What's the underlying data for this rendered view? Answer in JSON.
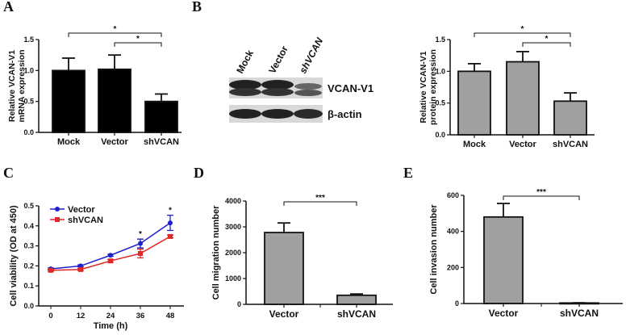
{
  "panels": {
    "A": "A",
    "B": "B",
    "C": "C",
    "D": "D",
    "E": "E"
  },
  "blot": {
    "lanes": [
      "Mock",
      "Vector",
      "shVCAN"
    ],
    "bands": [
      "VCAN-V1",
      "β-actin"
    ]
  },
  "colors": {
    "black_bar": "#000000",
    "gray_bar": "#a0a0a0",
    "vector": "#1f1fcc",
    "shvcan": "#e02828"
  },
  "chart_data": [
    {
      "panel": "A",
      "type": "bar",
      "categories": [
        "Mock",
        "Vector",
        "shVCAN"
      ],
      "values": [
        1.0,
        1.02,
        0.5
      ],
      "errors": [
        0.2,
        0.23,
        0.12
      ],
      "ylabel": [
        "Relative VCAN-V1",
        "mRNA expression"
      ],
      "ylim": [
        0,
        1.5
      ],
      "yticks": [
        "0.0",
        "0.5",
        "1.0",
        "1.5"
      ],
      "ytick_values": [
        0,
        0.5,
        1.0,
        1.5
      ],
      "bar_color": "#000000",
      "significance": [
        {
          "from": "Mock",
          "to": "shVCAN",
          "label": "*"
        },
        {
          "from": "Vector",
          "to": "shVCAN",
          "label": "*"
        }
      ]
    },
    {
      "panel": "B",
      "type": "bar",
      "categories": [
        "Mock",
        "Vector",
        "shVCAN"
      ],
      "values": [
        1.0,
        1.15,
        0.53
      ],
      "errors": [
        0.12,
        0.16,
        0.13
      ],
      "ylabel": [
        "Relative VCAN-V1",
        "protein expression"
      ],
      "ylim": [
        0,
        1.5
      ],
      "yticks": [
        "0.0",
        "0.5",
        "1.0",
        "1.5"
      ],
      "ytick_values": [
        0,
        0.5,
        1.0,
        1.5
      ],
      "bar_color": "#a0a0a0",
      "significance": [
        {
          "from": "Mock",
          "to": "shVCAN",
          "label": "*"
        },
        {
          "from": "Vector",
          "to": "shVCAN",
          "label": "*"
        }
      ]
    },
    {
      "panel": "C",
      "type": "line",
      "x": [
        0,
        12,
        24,
        36,
        48
      ],
      "xticks": [
        "0",
        "12",
        "24",
        "36",
        "48"
      ],
      "series": [
        {
          "name": "Vector",
          "values": [
            0.185,
            0.2,
            0.253,
            0.312,
            0.415
          ],
          "errors": [
            0.005,
            0.005,
            0.005,
            0.022,
            0.038
          ],
          "color": "#1f1fcc",
          "marker": "circle"
        },
        {
          "name": "shVCAN",
          "values": [
            0.178,
            0.182,
            0.225,
            0.262,
            0.347
          ],
          "errors": [
            0.005,
            0.005,
            0.007,
            0.022,
            0.007
          ],
          "color": "#e02828",
          "marker": "square"
        }
      ],
      "xlabel": "Time (h)",
      "ylabel": "Cell viability (OD at 450)",
      "xlim": [
        0,
        48
      ],
      "ylim": [
        0,
        0.5
      ],
      "yticks": [
        "0.0",
        "0.1",
        "0.2",
        "0.3",
        "0.4",
        "0.5"
      ],
      "ytick_values": [
        0,
        0.1,
        0.2,
        0.3,
        0.4,
        0.5
      ],
      "annotations": [
        {
          "x": 36,
          "label": "*"
        },
        {
          "x": 48,
          "label": "*"
        }
      ],
      "legend": "top-left"
    },
    {
      "panel": "D",
      "type": "bar",
      "categories": [
        "Vector",
        "shVCAN"
      ],
      "values": [
        2780,
        350
      ],
      "errors": [
        370,
        50
      ],
      "ylabel": "Cell migration number",
      "ylim": [
        0,
        4000
      ],
      "yticks": [
        "0",
        "1000",
        "2000",
        "3000",
        "4000"
      ],
      "ytick_values": [
        0,
        1000,
        2000,
        3000,
        4000
      ],
      "bar_color": "#a0a0a0",
      "significance": [
        {
          "from": "Vector",
          "to": "shVCAN",
          "label": "***"
        }
      ]
    },
    {
      "panel": "E",
      "type": "bar",
      "categories": [
        "Vector",
        "shVCAN"
      ],
      "values": [
        480,
        3
      ],
      "errors": [
        75,
        1
      ],
      "ylabel": "Cell invasion number",
      "ylim": [
        0,
        600
      ],
      "yticks": [
        "0",
        "200",
        "400",
        "600"
      ],
      "ytick_values": [
        0,
        200,
        400,
        600
      ],
      "bar_color": "#a0a0a0",
      "significance": [
        {
          "from": "Vector",
          "to": "shVCAN",
          "label": "***"
        }
      ]
    }
  ]
}
